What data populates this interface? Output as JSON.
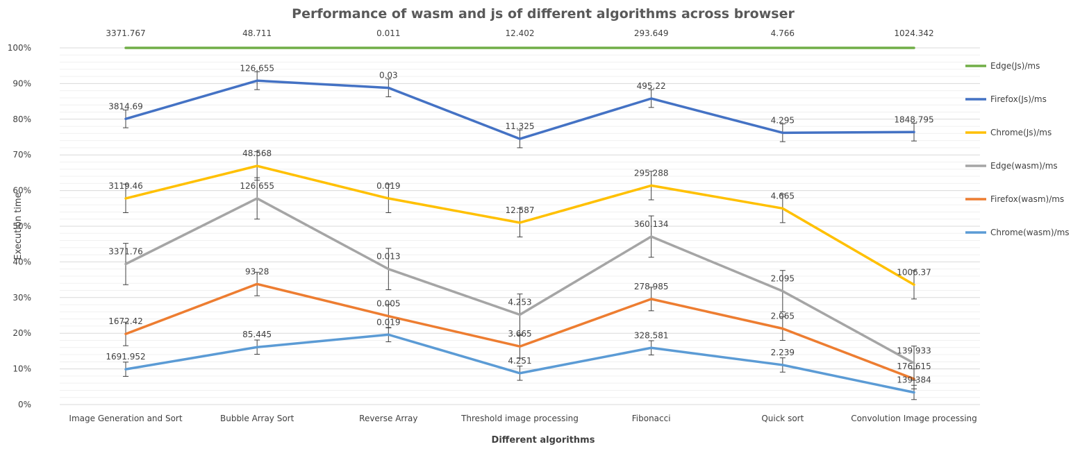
{
  "chart_data": {
    "type": "line",
    "title": "Performance of wasm and js of different algorithms across browser",
    "xlabel": "Different algorithms",
    "ylabel": "Execution time",
    "ylim": [
      0,
      100
    ],
    "yticks": [
      "0%",
      "10%",
      "20%",
      "30%",
      "40%",
      "50%",
      "60%",
      "70%",
      "80%",
      "90%",
      "100%"
    ],
    "grid": true,
    "legend_position": "right",
    "categories": [
      "Image Generation and Sort",
      "Bubble Array Sort",
      "Reverse Array",
      "Threshold image processing",
      "Fibonacci",
      "Quick sort",
      "Convolution Image processing"
    ],
    "series": [
      {
        "name": "Edge(Js)/ms",
        "color": "#70AD47",
        "values": [
          100,
          100,
          100,
          100,
          100,
          100,
          100
        ],
        "error": [
          0,
          0,
          0,
          0,
          0,
          0,
          0
        ],
        "labels": [
          "3371.767",
          "48.711",
          "0.011",
          "12.402",
          "293.649",
          "4.766",
          "1024.342"
        ]
      },
      {
        "name": "Firefox(Js)/ms",
        "color": "#4472C4",
        "values": [
          80.1,
          90.8,
          88.8,
          74.5,
          85.8,
          76.2,
          76.4
        ],
        "error": [
          2.5,
          2.5,
          2.5,
          2.5,
          2.5,
          2.5,
          2.5
        ],
        "labels": [
          "3814.69",
          "126.655",
          "0.03",
          "11.325",
          "495.22",
          "4.295",
          "1848.795"
        ]
      },
      {
        "name": "Chrome(Js)/ms",
        "color": "#FFC000",
        "values": [
          57.8,
          66.9,
          57.8,
          51.0,
          61.4,
          55.0,
          33.6
        ],
        "error": [
          4.0,
          4.0,
          4.0,
          4.0,
          4.0,
          4.0,
          4.0
        ],
        "labels": [
          "3119.46",
          "48.568",
          "0.019",
          "12.587",
          "295.288",
          "4.665",
          "1006.37"
        ]
      },
      {
        "name": "Edge(wasm)/ms",
        "color": "#A5A5A5",
        "values": [
          39.4,
          57.8,
          38.0,
          25.2,
          47.1,
          31.8,
          11.6
        ],
        "error": [
          5.8,
          5.8,
          5.8,
          5.8,
          5.8,
          5.8,
          4.8
        ],
        "labels": [
          "3371.76",
          "126.655",
          "0.013",
          "4.253",
          "360.134",
          "2.095",
          "139.933"
        ]
      },
      {
        "name": "Firefox(wasm)/ms",
        "color": "#ED7D31",
        "values": [
          19.8,
          33.8,
          24.8,
          16.3,
          29.6,
          21.3,
          7.2
        ],
        "error": [
          3.3,
          3.3,
          3.3,
          3.3,
          3.3,
          3.3,
          2.8
        ],
        "labels": [
          "1672.42",
          "93.28",
          "0.005",
          "3.665",
          "278.985",
          "2.065",
          "176.615"
        ]
      },
      {
        "name": "Chrome(wasm)/ms",
        "color": "#5B9BD5",
        "values": [
          9.9,
          16.1,
          19.6,
          8.8,
          15.9,
          11.1,
          3.4
        ],
        "error": [
          2.0,
          2.0,
          2.0,
          2.0,
          2.0,
          2.0,
          2.0
        ],
        "labels": [
          "1691.952",
          "85.445",
          "0.019",
          "4.251",
          "328.581",
          "2.239",
          "139.384"
        ]
      }
    ]
  }
}
